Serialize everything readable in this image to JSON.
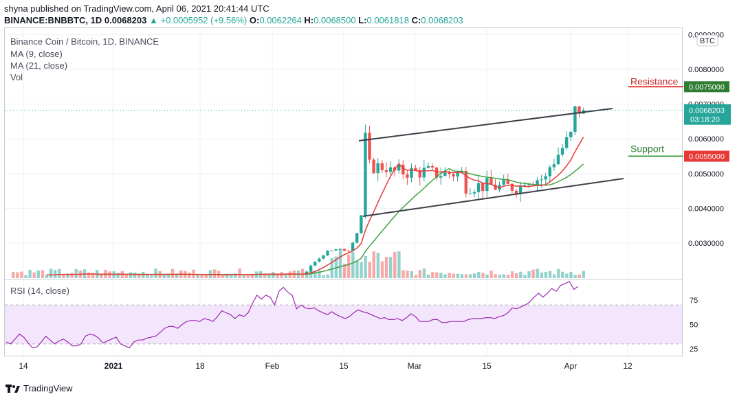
{
  "header": {
    "published_line": "shyna published on TradingView.com, April 06, 2021 20:41:44 UTC",
    "symbol": "BINANCE:BNBBTC, 1D",
    "last": "0.0068203",
    "change": "+0.0005952 (+9.56%)",
    "o_label": "O:",
    "o": "0.0062264",
    "h_label": "H:",
    "h": "0.0068500",
    "l_label": "L:",
    "l": "0.0061818",
    "c_label": "C:",
    "c": "0.0068203"
  },
  "legend": {
    "title": "Binance Coin / Bitcoin, 1D, BINANCE",
    "ma9": "MA (9, close)",
    "ma21": "MA (21, close)",
    "vol": "Vol",
    "rsi": "RSI (14, close)"
  },
  "footer": {
    "brand": "TradingView"
  },
  "colors": {
    "up": "#26a69a",
    "down": "#ef5350",
    "ma9": "#e53935",
    "ma21": "#43a047",
    "rsi_line": "#9c27b0",
    "rsi_band": "#f3e5fb",
    "resistance": "#e53935",
    "support": "#43a047"
  },
  "chart_data": {
    "type": "candlestick",
    "title": "Binance Coin / Bitcoin, 1D, BINANCE",
    "currency_label": "BTC",
    "price_ticks": [
      "0.0030000",
      "0.0040000",
      "0.0050000",
      "0.0060000",
      "0.0070000",
      "0.0080000",
      "0.0090000"
    ],
    "ylim": [
      0.0021,
      0.009
    ],
    "x_ticks": [
      "14",
      "2021",
      "18",
      "Feb",
      "15",
      "Mar",
      "15",
      "Apr",
      "12"
    ],
    "last_price": {
      "value": "0.0068203",
      "countdown": "03:18:20"
    },
    "levels": [
      {
        "name": "Resistance",
        "value": "0.0075000"
      },
      {
        "name": "Support",
        "value": "0.0055000"
      }
    ],
    "trend_channel": {
      "upper": [
        [
          "Feb 19",
          0.00596
        ],
        [
          "Apr 08",
          0.00685
        ]
      ],
      "lower": [
        [
          "Feb 19",
          0.0038
        ],
        [
          "Apr 13",
          0.00487
        ]
      ]
    },
    "rsi": {
      "ticks": [
        "25",
        "50",
        "75"
      ],
      "band": [
        30,
        70
      ],
      "ylim": [
        15,
        95
      ],
      "values": [
        32,
        30,
        35,
        40,
        37,
        31,
        26,
        27,
        32,
        38,
        34,
        30,
        33,
        35,
        32,
        28,
        28,
        30,
        38,
        40,
        39,
        36,
        31,
        33,
        35,
        37,
        30,
        28,
        26,
        32,
        34,
        34,
        36,
        37,
        38,
        42,
        46,
        48,
        48,
        46,
        50,
        53,
        54,
        54,
        53,
        56,
        55,
        53,
        58,
        64,
        62,
        60,
        56,
        60,
        58,
        62,
        72,
        80,
        76,
        80,
        78,
        70,
        84,
        88,
        83,
        80,
        66,
        70,
        67,
        66,
        67,
        64,
        62,
        60,
        63,
        60,
        58,
        56,
        58,
        62,
        65,
        63,
        62,
        60,
        58,
        56,
        57,
        55,
        55,
        56,
        54,
        57,
        61,
        58,
        53,
        53,
        53,
        55,
        55,
        52,
        52,
        53,
        53,
        53,
        53,
        55,
        56,
        56,
        56,
        57,
        57,
        56,
        58,
        59,
        62,
        67,
        66,
        68,
        70,
        73,
        78,
        82,
        78,
        82,
        87,
        84,
        90,
        92,
        94,
        86,
        89
      ]
    },
    "volume_note": "relative volume bars, colored by candle direction"
  }
}
